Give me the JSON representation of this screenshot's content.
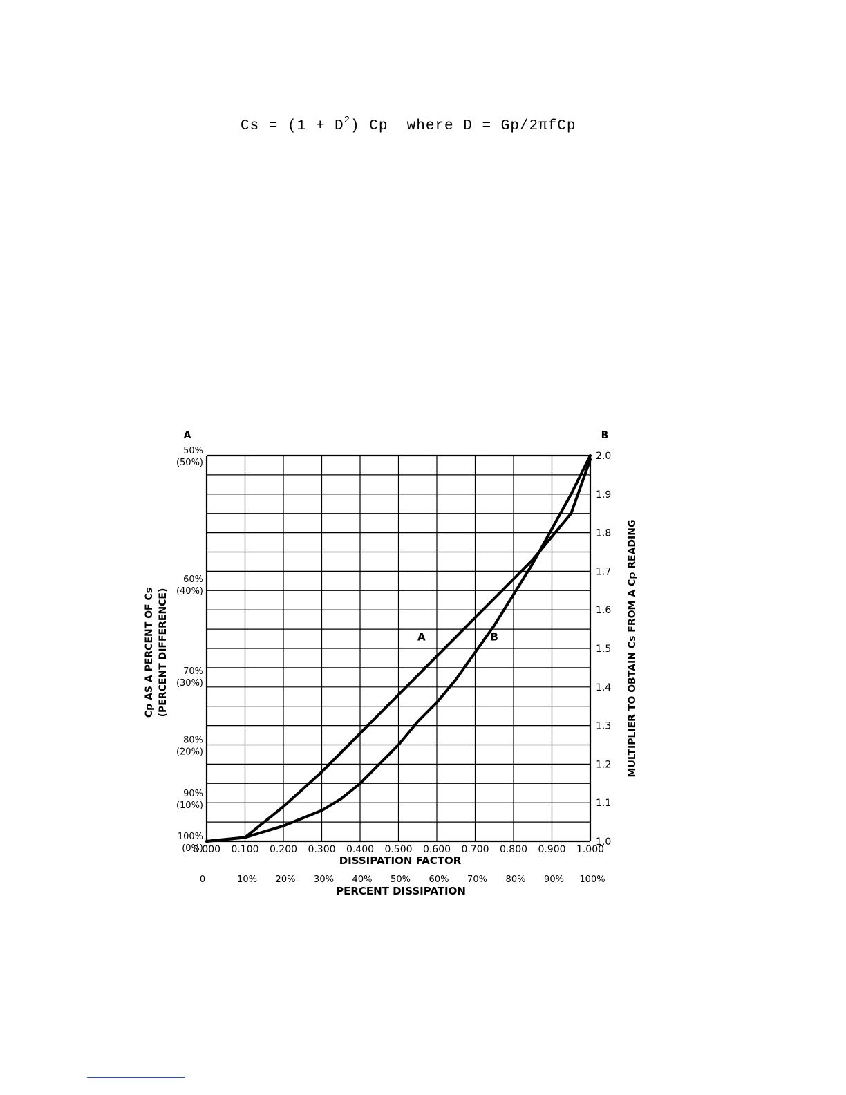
{
  "formula": {
    "lhs": "Cs = (1 + D",
    "exp": "2",
    "rhs": ") Cp  where D = Gp/2πfCp"
  },
  "colors": {
    "ink": "#000000",
    "paper": "#ffffff",
    "rule": "#1a4fd8"
  },
  "chart_data": {
    "type": "line",
    "title": "",
    "corner_labels": {
      "left": "A",
      "right": "B"
    },
    "xlabel": "DISSIPATION FACTOR",
    "xlabel2": "PERCENT DISSIPATION",
    "ylabel_left": [
      "Cp AS A PERCENT OF Cs",
      "(PERCENT DIFFERENCE)"
    ],
    "ylabel_right": "MULTIPLIER TO OBTAIN Cs FROM A Cp READING",
    "xlim": [
      0,
      1
    ],
    "ylim_right": [
      1.0,
      2.0
    ],
    "x_ticks": [
      "0.000",
      "0.100",
      "0.200",
      "0.300",
      "0.400",
      "0.500",
      "0.600",
      "0.700",
      "0.800",
      "0.900",
      "1.000"
    ],
    "x_ticks_percent": [
      "0",
      "10%",
      "20%",
      "30%",
      "40%",
      "50%",
      "60%",
      "70%",
      "80%",
      "90%",
      "100%"
    ],
    "left_ticks": [
      {
        "value": 2.0,
        "main": "50%",
        "sub": "(50%)"
      },
      {
        "value": 1.667,
        "main": "60%",
        "sub": "(40%)"
      },
      {
        "value": 1.4286,
        "main": "70%",
        "sub": "(30%)"
      },
      {
        "value": 1.25,
        "main": "80%",
        "sub": "(20%)"
      },
      {
        "value": 1.111,
        "main": "90%",
        "sub": "(10%)"
      },
      {
        "value": 1.0,
        "main": "100%",
        "sub": "(0%)"
      }
    ],
    "right_ticks": [
      {
        "value": 2.0,
        "label": "2.0"
      },
      {
        "value": 1.9,
        "label": "1.9"
      },
      {
        "value": 1.8,
        "label": "1.8"
      },
      {
        "value": 1.7,
        "label": "1.7"
      },
      {
        "value": 1.6,
        "label": "1.6"
      },
      {
        "value": 1.5,
        "label": "1.5"
      },
      {
        "value": 1.4,
        "label": "1.4"
      },
      {
        "value": 1.3,
        "label": "1.3"
      },
      {
        "value": 1.2,
        "label": "1.2"
      },
      {
        "value": 1.1,
        "label": "1.1"
      },
      {
        "value": 1.0,
        "label": "1.0"
      }
    ],
    "grid": true,
    "series": [
      {
        "name": "A",
        "label_at": [
          0.56,
          1.53
        ],
        "x": [
          0,
          0.1,
          0.15,
          0.2,
          0.25,
          0.3,
          0.35,
          0.4,
          0.45,
          0.5,
          0.55,
          0.6,
          0.65,
          0.7,
          0.75,
          0.8,
          0.85,
          0.9,
          0.95,
          1.0
        ],
        "y": [
          1.0,
          1.01,
          1.05,
          1.09,
          1.135,
          1.18,
          1.23,
          1.28,
          1.33,
          1.38,
          1.43,
          1.48,
          1.53,
          1.58,
          1.63,
          1.68,
          1.73,
          1.79,
          1.85,
          1.99
        ]
      },
      {
        "name": "B",
        "label_at": [
          0.75,
          1.53
        ],
        "x": [
          0,
          0.1,
          0.15,
          0.2,
          0.25,
          0.3,
          0.35,
          0.4,
          0.45,
          0.5,
          0.55,
          0.6,
          0.65,
          0.7,
          0.75,
          0.8,
          0.85,
          0.9,
          0.95,
          1.0
        ],
        "y": [
          1.0,
          1.01,
          1.025,
          1.04,
          1.06,
          1.08,
          1.11,
          1.15,
          1.2,
          1.25,
          1.31,
          1.36,
          1.42,
          1.49,
          1.56,
          1.64,
          1.72,
          1.81,
          1.9,
          2.0
        ]
      }
    ]
  }
}
